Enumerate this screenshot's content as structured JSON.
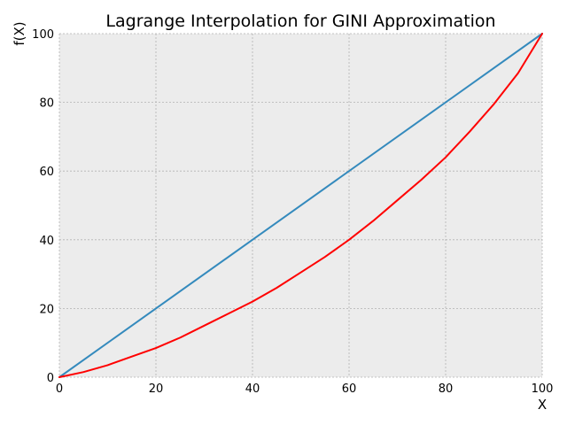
{
  "chart_data": {
    "type": "line",
    "title": "Lagrange Interpolation for GINI Approximation",
    "xlabel": "X",
    "ylabel": "f(X)",
    "xlim": [
      0,
      100
    ],
    "ylim": [
      0,
      100
    ],
    "xticks": [
      "0",
      "20",
      "40",
      "60",
      "80",
      "100"
    ],
    "yticks": [
      "0",
      "20",
      "40",
      "60",
      "80",
      "100"
    ],
    "grid": true,
    "series": [
      {
        "color": "#348abd",
        "x": [
          0,
          100
        ],
        "y": [
          0,
          100
        ]
      },
      {
        "color": "#ff0000",
        "x": [
          0,
          5,
          10,
          15,
          20,
          25,
          30,
          35,
          40,
          45,
          50,
          55,
          60,
          65,
          70,
          75,
          80,
          85,
          90,
          95,
          100
        ],
        "y": [
          0,
          1.5,
          3.5,
          6,
          8.5,
          11.5,
          15,
          18.5,
          22,
          26,
          30.5,
          35,
          40,
          45.5,
          51.5,
          57.5,
          64,
          71.5,
          79.5,
          88.5,
          100
        ]
      }
    ]
  }
}
